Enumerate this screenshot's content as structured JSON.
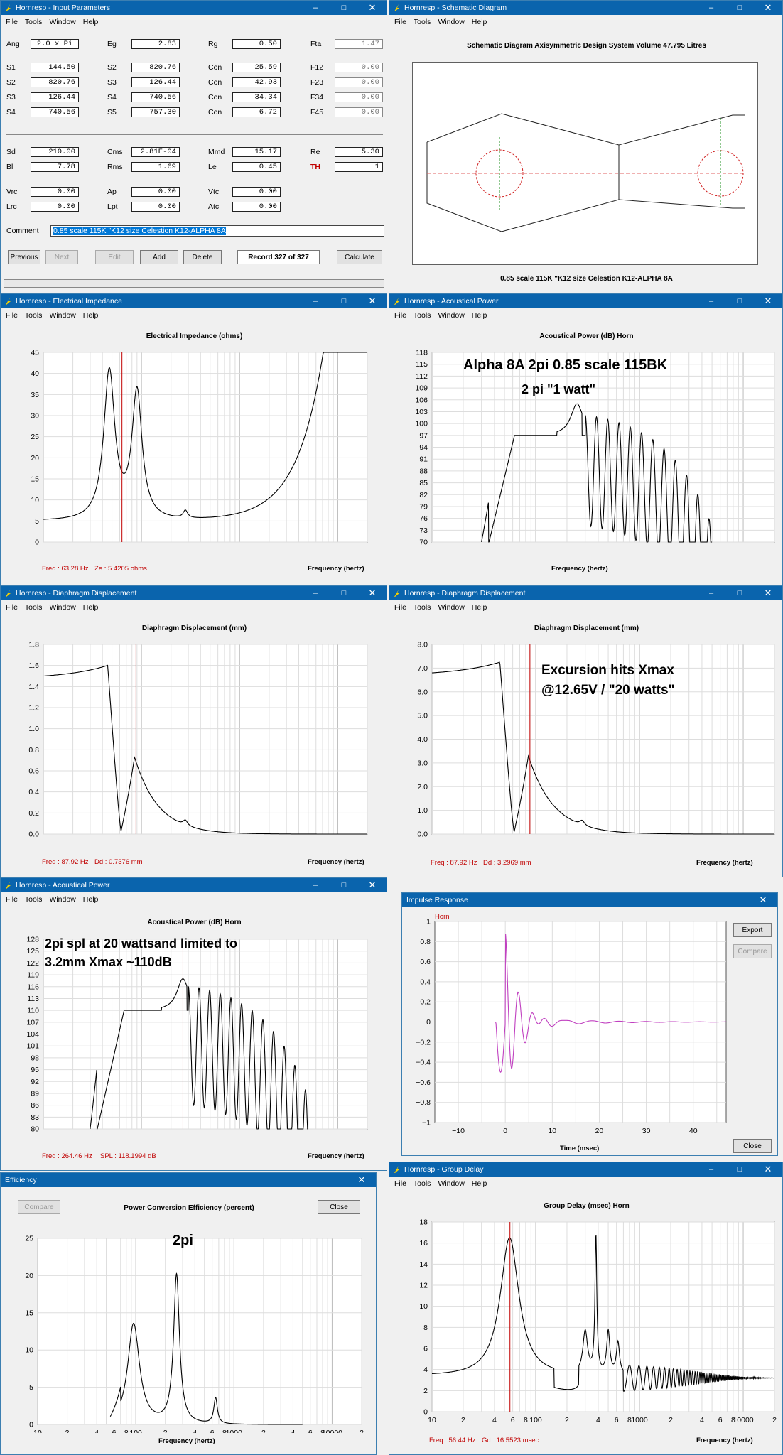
{
  "app_name": "Hornresp",
  "windows": {
    "input": {
      "title": "Hornresp - Input Parameters"
    },
    "schematic": {
      "title": "Hornresp - Schematic Diagram"
    },
    "imp": {
      "title": "Hornresp - Electrical Impedance"
    },
    "ap1": {
      "title": "Hornresp - Acoustical Power"
    },
    "dd1": {
      "title": "Hornresp - Diaphragm Displacement"
    },
    "dd2": {
      "title": "Hornresp - Diaphragm Displacement"
    },
    "ap2": {
      "title": "Hornresp - Acoustical Power"
    },
    "ir": {
      "title": "Impulse Response"
    },
    "eff": {
      "title": "Efficiency"
    },
    "gd": {
      "title": "Hornresp - Group Delay"
    }
  },
  "menus": {
    "file": "File",
    "tools": "Tools",
    "window": "Window",
    "help": "Help"
  },
  "title_controls": {
    "minimize": "–",
    "maximize": "□",
    "close": "✕"
  },
  "input_params": {
    "row1": [
      {
        "l": "Ang",
        "v": "2.0 x Pi"
      },
      {
        "l": "Eg",
        "v": "2.83"
      },
      {
        "l": "Rg",
        "v": "0.50"
      },
      {
        "l": "Fta",
        "v": "1.47"
      }
    ],
    "row2": [
      {
        "l": "S1",
        "v": "144.50"
      },
      {
        "l": "S2",
        "v": "820.76"
      },
      {
        "l": "Con",
        "v": "25.59"
      },
      {
        "l": "F12",
        "v": "0.00"
      }
    ],
    "row3": [
      {
        "l": "S2",
        "v": "820.76"
      },
      {
        "l": "S3",
        "v": "126.44"
      },
      {
        "l": "Con",
        "v": "42.93"
      },
      {
        "l": "F23",
        "v": "0.00"
      }
    ],
    "row4": [
      {
        "l": "S3",
        "v": "126.44"
      },
      {
        "l": "S4",
        "v": "740.56"
      },
      {
        "l": "Con",
        "v": "34.34"
      },
      {
        "l": "F34",
        "v": "0.00"
      }
    ],
    "row5": [
      {
        "l": "S4",
        "v": "740.56"
      },
      {
        "l": "S5",
        "v": "757.30"
      },
      {
        "l": "Con",
        "v": "6.72"
      },
      {
        "l": "F45",
        "v": "0.00"
      }
    ],
    "row6": [
      {
        "l": "Sd",
        "v": "210.00"
      },
      {
        "l": "Cms",
        "v": "2.81E-04"
      },
      {
        "l": "Mmd",
        "v": "15.17"
      },
      {
        "l": "Re",
        "v": "5.30"
      }
    ],
    "row7": [
      {
        "l": "Bl",
        "v": "7.78"
      },
      {
        "l": "Rms",
        "v": "1.69"
      },
      {
        "l": "Le",
        "v": "0.45"
      },
      {
        "l": "TH",
        "v": "1"
      }
    ],
    "row8": [
      {
        "l": "Vrc",
        "v": "0.00"
      },
      {
        "l": "Ap",
        "v": "0.00"
      },
      {
        "l": "Vtc",
        "v": "0.00"
      }
    ],
    "row9": [
      {
        "l": "Lrc",
        "v": "0.00"
      },
      {
        "l": "Lpt",
        "v": "0.00"
      },
      {
        "l": "Atc",
        "v": "0.00"
      }
    ],
    "comment_label": "Comment",
    "comment_value": "0.85 scale 115K  \"K12 size Celestion K12-ALPHA 8A",
    "buttons": {
      "previous": "Previous",
      "next": "Next",
      "edit": "Edit",
      "add": "Add",
      "delete": "Delete",
      "calculate": "Calculate"
    },
    "record": "Record 327 of 327"
  },
  "schematic": {
    "header": "Schematic Diagram   Axisymmetric Design   System Volume 47.795 Litres",
    "caption": "0.85 scale 115K  \"K12 size Celestion K12-ALPHA 8A"
  },
  "x_ticks": [
    "10",
    "2",
    "4",
    "6",
    "8",
    "100",
    "2",
    "4",
    "6",
    "8",
    "1000",
    "2",
    "4",
    "6",
    "8",
    "10000",
    "2"
  ],
  "x_label": "Frequency (hertz)",
  "impedance": {
    "title": "Electrical Impedance (ohms)",
    "y_ticks": [
      "45",
      "40",
      "35",
      "30",
      "25",
      "20",
      "15",
      "10",
      "5",
      "0"
    ],
    "footer_freq": "Freq : 63.28 Hz",
    "footer_val": "Ze : 5.4205 ohms"
  },
  "power1": {
    "title": "Acoustical Power (dB)   Horn",
    "y_ticks": [
      "118",
      "115",
      "112",
      "109",
      "106",
      "103",
      "100",
      "97",
      "94",
      "91",
      "88",
      "85",
      "82",
      "79",
      "76",
      "73",
      "70"
    ],
    "ann1": "Alpha 8A 2pi 0.85 scale 115BK",
    "ann2": "2 pi \"1 watt\""
  },
  "disp1": {
    "title": "Diaphragm Displacement (mm)",
    "y_ticks": [
      "1.8",
      "1.6",
      "1.4",
      "1.2",
      "1.0",
      "0.8",
      "0.6",
      "0.4",
      "0.2",
      "0.0"
    ],
    "footer_freq": "Freq : 87.92 Hz",
    "footer_val": "Dd : 0.7376 mm"
  },
  "disp2": {
    "title": "Diaphragm Displacement (mm)",
    "y_ticks": [
      "8.0",
      "7.0",
      "6.0",
      "5.0",
      "4.0",
      "3.0",
      "2.0",
      "1.0",
      "0.0"
    ],
    "footer_freq": "Freq : 87.92 Hz",
    "footer_val": "Dd : 3.2969 mm",
    "ann1": "Excursion hits Xmax",
    "ann2": "@12.65V / \"20 watts\""
  },
  "power2": {
    "title": "Acoustical Power (dB)   Horn",
    "y_ticks": [
      "128",
      "125",
      "122",
      "119",
      "116",
      "113",
      "110",
      "107",
      "104",
      "101",
      "98",
      "95",
      "92",
      "89",
      "86",
      "83",
      "80"
    ],
    "footer_freq": "Freq : 264.46 Hz",
    "footer_val": "SPL : 118.1994 dB",
    "ann1": "2pi spl at 20 wattsand limited to",
    "ann2": "3.2mm Xmax ~110dB"
  },
  "impulse": {
    "legend": "Horn",
    "y_ticks": [
      "1",
      "0.8",
      "0.6",
      "0.4",
      "0.2",
      "0",
      "−0.2",
      "−0.4",
      "−0.6",
      "−0.8",
      "−1"
    ],
    "x_ticks": [
      "−10",
      "0",
      "10",
      "20",
      "30",
      "40"
    ],
    "x_label": "Time (msec)",
    "export": "Export",
    "compare": "Compare",
    "close": "Close"
  },
  "efficiency": {
    "title": "Power Conversion Efficiency (percent)",
    "y_ticks": [
      "25",
      "20",
      "15",
      "10",
      "5",
      "0"
    ],
    "compare": "Compare",
    "close": "Close",
    "ann": "2pi"
  },
  "group_delay": {
    "title": "Group Delay (msec)   Horn",
    "y_ticks": [
      "18",
      "16",
      "14",
      "12",
      "10",
      "8",
      "6",
      "4",
      "2",
      "0"
    ],
    "footer_freq": "Freq : 56.44 Hz",
    "footer_val": "Gd : 16.5523 msec"
  }
}
